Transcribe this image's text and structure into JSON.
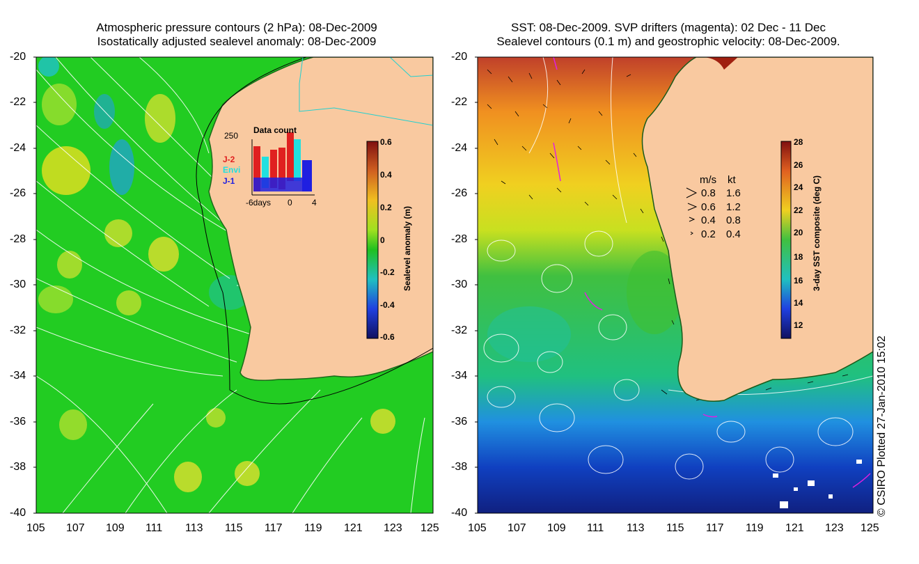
{
  "left_panel": {
    "title_line1": "Atmospheric pressure contours (2 hPa): 08-Dec-2009",
    "title_line2": "Isostatically adjusted sealevel anomaly: 08-Dec-2009",
    "colorbar_label": "Sealevel anomaly (m)",
    "colorbar_ticks": [
      "0.6",
      "0.4",
      "0.2",
      "0",
      "-0.2",
      "-0.4",
      "-0.6"
    ],
    "inset": {
      "title": "Data count",
      "ymax_label": "250",
      "legend": [
        {
          "label": "J-2",
          "color": "#e02020"
        },
        {
          "label": "Envi",
          "color": "#20e0e0"
        },
        {
          "label": "J-1",
          "color": "#2020e0"
        }
      ],
      "x_labels": [
        "-6days",
        "0",
        "4"
      ]
    }
  },
  "right_panel": {
    "title_line1": "SST: 08-Dec-2009. SVP drifters (magenta): 02 Dec - 11 Dec",
    "title_line2": "Sealevel contours (0.1 m) and geostrophic velocity: 08-Dec-2009.",
    "colorbar_label": "3-day SST composite (deg C)",
    "colorbar_ticks": [
      "28",
      "26",
      "24",
      "22",
      "20",
      "18",
      "16",
      "14",
      "12"
    ],
    "speed_legend": {
      "header_ms": "m/s",
      "header_kt": "kt",
      "rows": [
        {
          "ms": "0.8",
          "kt": "1.6"
        },
        {
          "ms": "0.6",
          "kt": "1.2"
        },
        {
          "ms": "0.4",
          "kt": "0.8"
        },
        {
          "ms": "0.2",
          "kt": "0.4"
        }
      ]
    }
  },
  "axes": {
    "y_ticks": [
      "-20",
      "-22",
      "-24",
      "-26",
      "-28",
      "-30",
      "-32",
      "-34",
      "-36",
      "-38",
      "-40"
    ],
    "x_ticks": [
      "105",
      "107",
      "109",
      "111",
      "113",
      "115",
      "117",
      "119",
      "121",
      "123",
      "125"
    ]
  },
  "credit": "© CSIRO Plotted 27-Jan-2010 15:02",
  "colors": {
    "land": "#f9c9a0",
    "ocean_green": "#22cc22",
    "coast": "#1a7a1a"
  }
}
